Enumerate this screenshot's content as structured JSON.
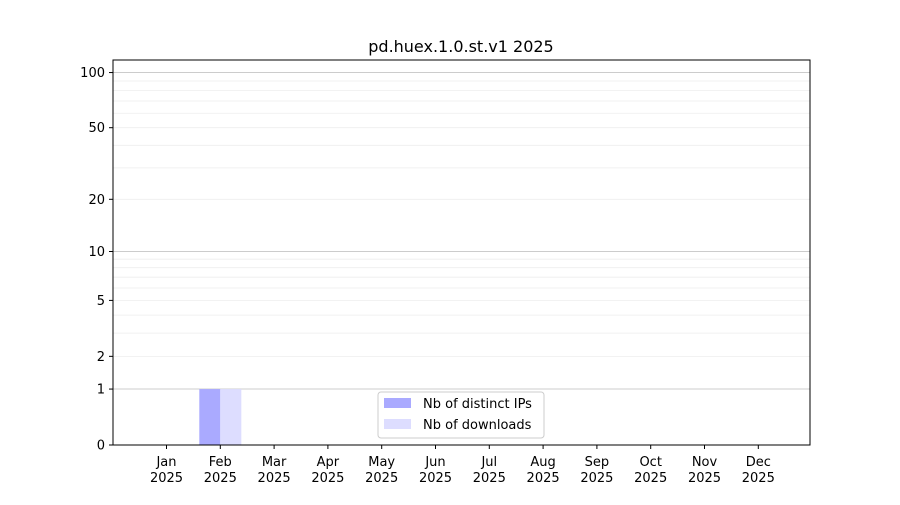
{
  "chart_data": {
    "type": "bar",
    "title": "pd.huex.1.0.st.v1 2025",
    "xlabel": "",
    "ylabel": "",
    "y_scale": "symlog (log of 1+value)",
    "ylim": [
      0,
      117
    ],
    "y_ticks": [
      0,
      1,
      2,
      5,
      10,
      20,
      50,
      100
    ],
    "grid": true,
    "legend_position": "lower-center",
    "categories": [
      "Jan\n2025",
      "Feb\n2025",
      "Mar\n2025",
      "Apr\n2025",
      "May\n2025",
      "Jun\n2025",
      "Jul\n2025",
      "Aug\n2025",
      "Sep\n2025",
      "Oct\n2025",
      "Nov\n2025",
      "Dec\n2025"
    ],
    "series": [
      {
        "name": "Nb of distinct IPs",
        "color": "#aaaaff",
        "values": [
          0,
          1,
          0,
          0,
          0,
          0,
          0,
          0,
          0,
          0,
          0,
          0
        ]
      },
      {
        "name": "Nb of downloads",
        "color": "#ddddff",
        "values": [
          0,
          1,
          0,
          0,
          0,
          0,
          0,
          0,
          0,
          0,
          0,
          0
        ]
      }
    ]
  }
}
